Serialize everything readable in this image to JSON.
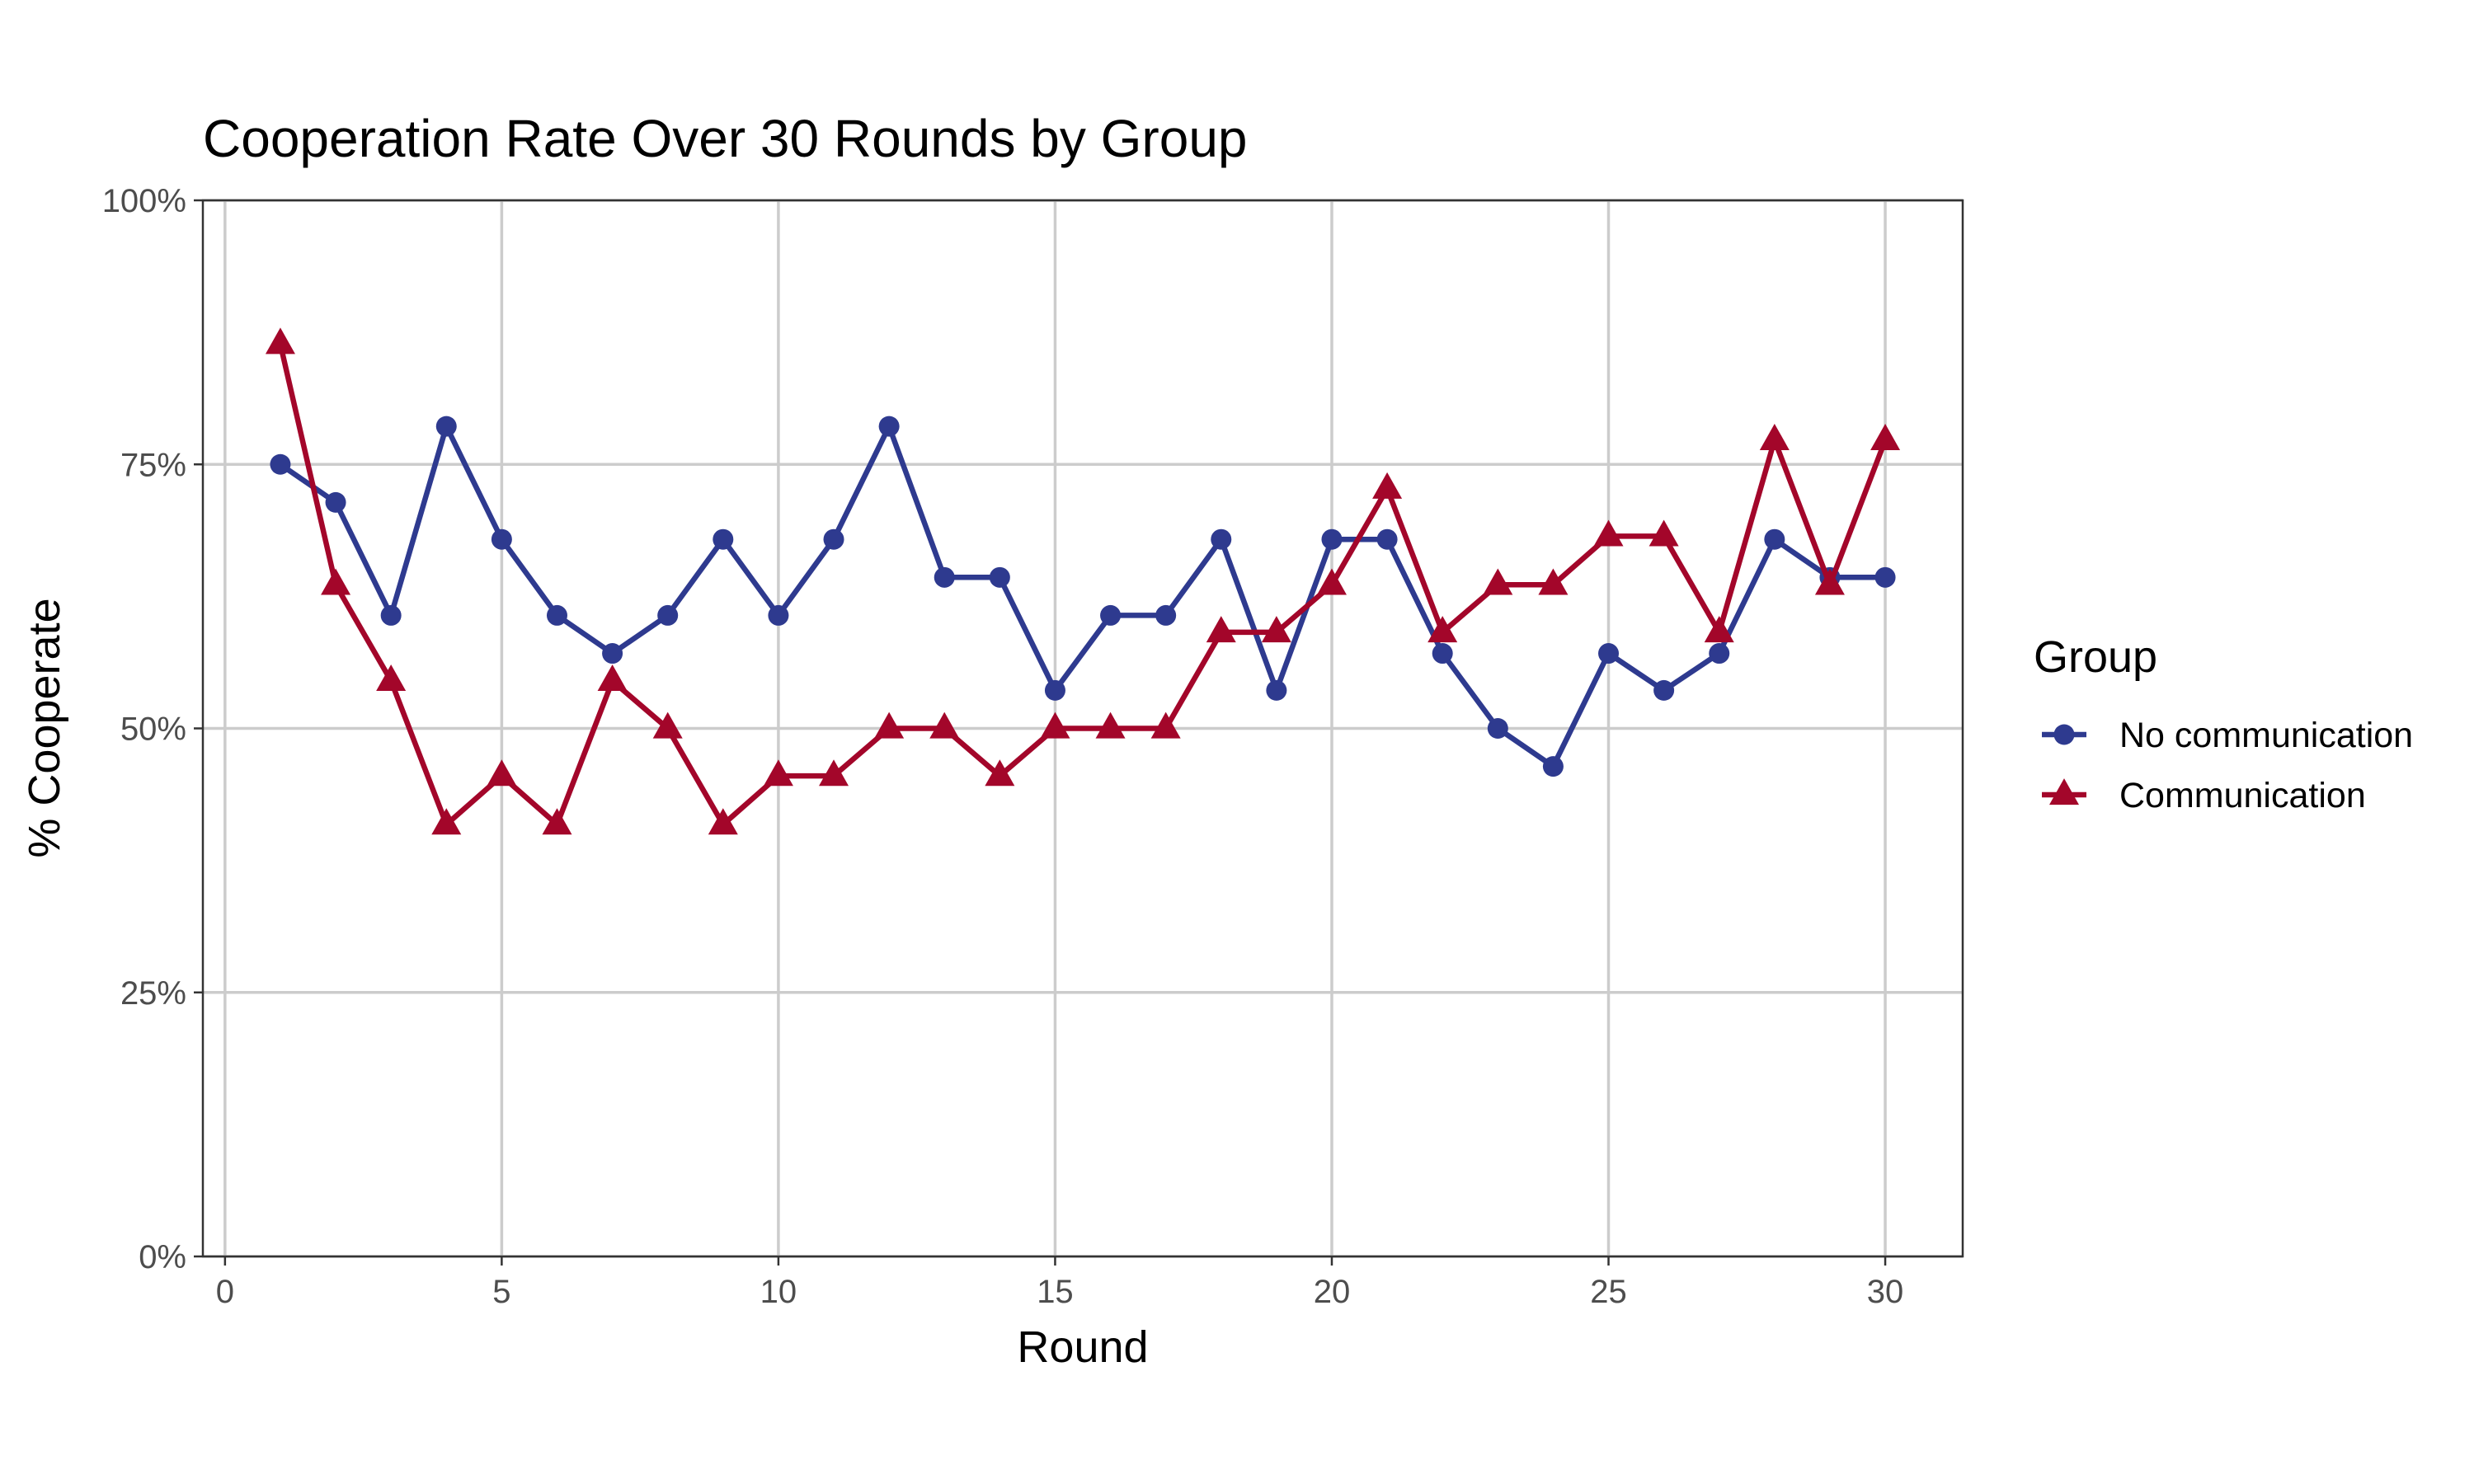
{
  "chart_data": {
    "type": "line",
    "title": "Cooperation Rate Over 30 Rounds by Group",
    "xlabel": "Round",
    "ylabel": "% Cooperate",
    "xlim": [
      -0.4,
      31.4
    ],
    "ylim": [
      0,
      1
    ],
    "xticks": [
      0,
      5,
      10,
      15,
      20,
      25,
      30
    ],
    "xtick_labels": [
      "0",
      "5",
      "10",
      "15",
      "20",
      "25",
      "30"
    ],
    "yticks": [
      0,
      0.25,
      0.5,
      0.75,
      1
    ],
    "ytick_labels": [
      "0%",
      "25%",
      "50%",
      "75%",
      "100%"
    ],
    "grid": true,
    "legend": {
      "title": "Group",
      "position": "right"
    },
    "x": [
      1,
      2,
      3,
      4,
      5,
      6,
      7,
      8,
      9,
      10,
      11,
      12,
      13,
      14,
      15,
      16,
      17,
      18,
      19,
      20,
      21,
      22,
      23,
      24,
      25,
      26,
      27,
      28,
      29,
      30
    ],
    "series": [
      {
        "name": "No communication",
        "color": "#2e3a8f",
        "marker": "circle",
        "values": [
          0.75,
          0.714,
          0.607,
          0.786,
          0.679,
          0.607,
          0.571,
          0.607,
          0.679,
          0.607,
          0.679,
          0.786,
          0.643,
          0.643,
          0.536,
          0.607,
          0.607,
          0.679,
          0.536,
          0.679,
          0.679,
          0.571,
          0.5,
          0.464,
          0.571,
          0.536,
          0.571,
          0.679,
          0.643,
          0.643
        ]
      },
      {
        "name": "Communication",
        "color": "#a3062a",
        "marker": "triangle",
        "values": [
          0.864,
          0.636,
          0.545,
          0.409,
          0.455,
          0.409,
          0.545,
          0.5,
          0.409,
          0.455,
          0.455,
          0.5,
          0.5,
          0.455,
          0.5,
          0.5,
          0.5,
          0.591,
          0.591,
          0.636,
          0.727,
          0.591,
          0.636,
          0.636,
          0.682,
          0.682,
          0.591,
          0.773,
          0.636,
          0.773
        ]
      }
    ]
  }
}
